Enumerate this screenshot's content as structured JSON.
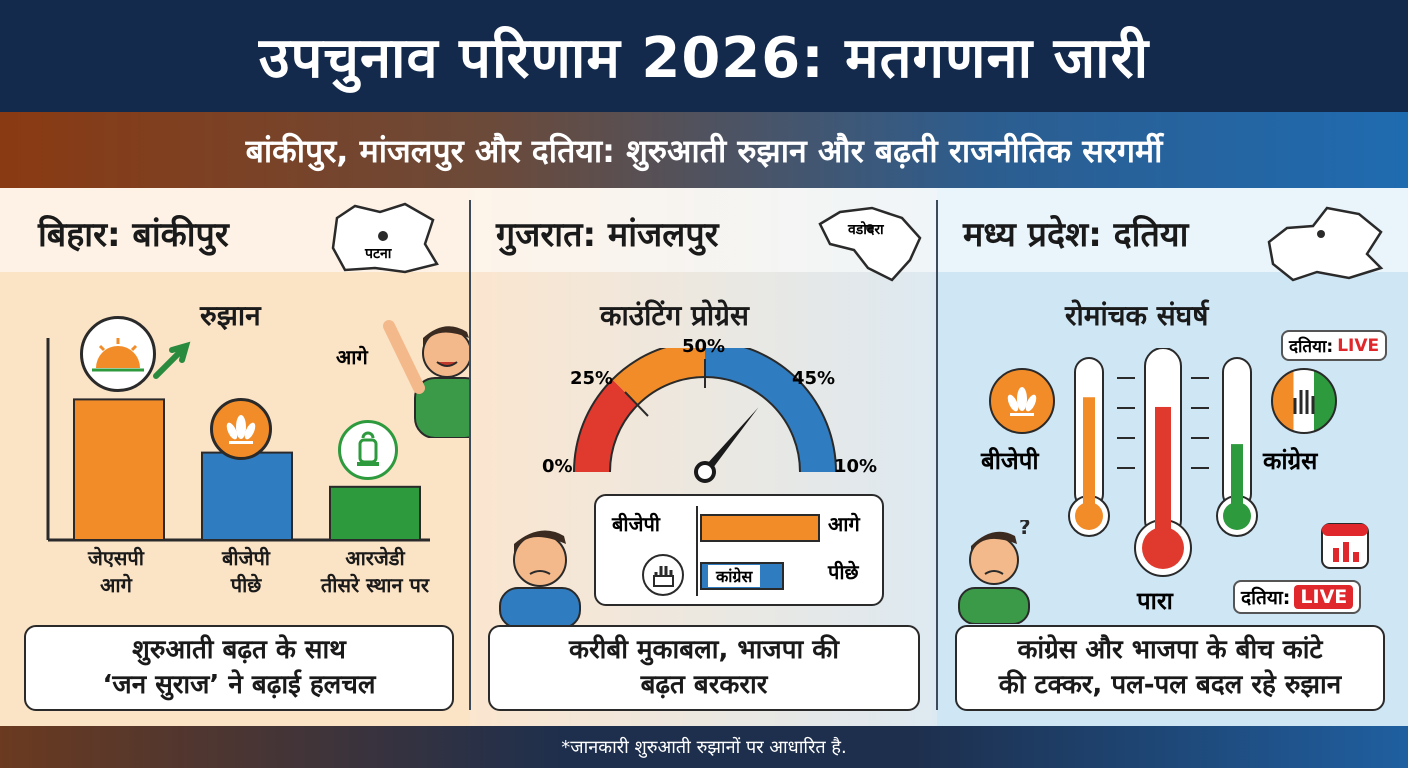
{
  "header": {
    "title": "उपचुनाव परिणाम 2026: मतगणना जारी",
    "subtitle": "बांकीपुर, मांजलपुर और दतिया: शुरुआती रुझान और बढ़ती राजनीतिक सरगर्मी"
  },
  "bihar": {
    "heading": "बिहार: बांकीपुर",
    "map_label": "पटना",
    "chart_title": "रुझान",
    "lead_word": "आगे",
    "chart_data": {
      "type": "bar",
      "categories": [
        "जेएसपी",
        "बीजेपी",
        "आरजेडी"
      ],
      "status": [
        "आगे",
        "पीछे",
        "तीसरे स्थान पर"
      ],
      "colors": [
        "#f28c28",
        "#2f7cc0",
        "#2e9a3e"
      ]
    },
    "bars": [
      {
        "party": "जेएसपी",
        "status": "आगे",
        "level": 0.74
      },
      {
        "party": "बीजेपी",
        "status": "पीछे",
        "level": 0.46
      },
      {
        "party": "आरजेडी",
        "status": "तीसरे स्थान पर",
        "level": 0.28
      }
    ],
    "caption_line1": "शुरुआती बढ़त के साथ",
    "caption_line2": "‘जन सुराज’ ने बढ़ाई हलचल"
  },
  "gujarat": {
    "heading": "गुजरात: मांजलपुर",
    "map_label": "वडोदरा",
    "gauge_title": "काउंटिंग प्रोग्रेस",
    "gauge_labels": {
      "zero": "0%",
      "q1": "25%",
      "half": "50%",
      "q3": "45%",
      "end": "10%"
    },
    "gauge_value": 0.72,
    "compare": [
      {
        "party": "बीजेपी",
        "status": "आगे",
        "level": 0.86
      },
      {
        "party": "कांग्रेस",
        "status": "पीछे",
        "level": 0.6
      }
    ],
    "caption_line1": "करीबी मुकाबला, भाजपा की",
    "caption_line2": "बढ़त बरकरार"
  },
  "mp": {
    "heading": "मध्य प्रदेश: दतिया",
    "section_title": "रोमांचक संघर्ष",
    "live_top": {
      "place": "दतिया:",
      "tag": "LIVE"
    },
    "live_bottom": {
      "place": "दतिया:",
      "tag": "LIVE"
    },
    "bjp_label": "बीजेपी",
    "congress_label": "कांग्रेस",
    "center_label": "पारा",
    "levels": {
      "bjp": 0.78,
      "center": 0.72,
      "congress": 0.45
    },
    "caption_line1": "कांग्रेस और भाजपा के बीच कांटे",
    "caption_line2": "की टक्कर, पल-पल बदल रहे रुझान"
  },
  "footer": {
    "note": "*जानकारी शुरुआती रुझानों पर आधारित है."
  },
  "colors": {
    "navy": "#132a4c",
    "saffron": "#f28c28",
    "blue": "#2f7cc0",
    "green": "#2e9a3e",
    "red": "#e0282c"
  }
}
